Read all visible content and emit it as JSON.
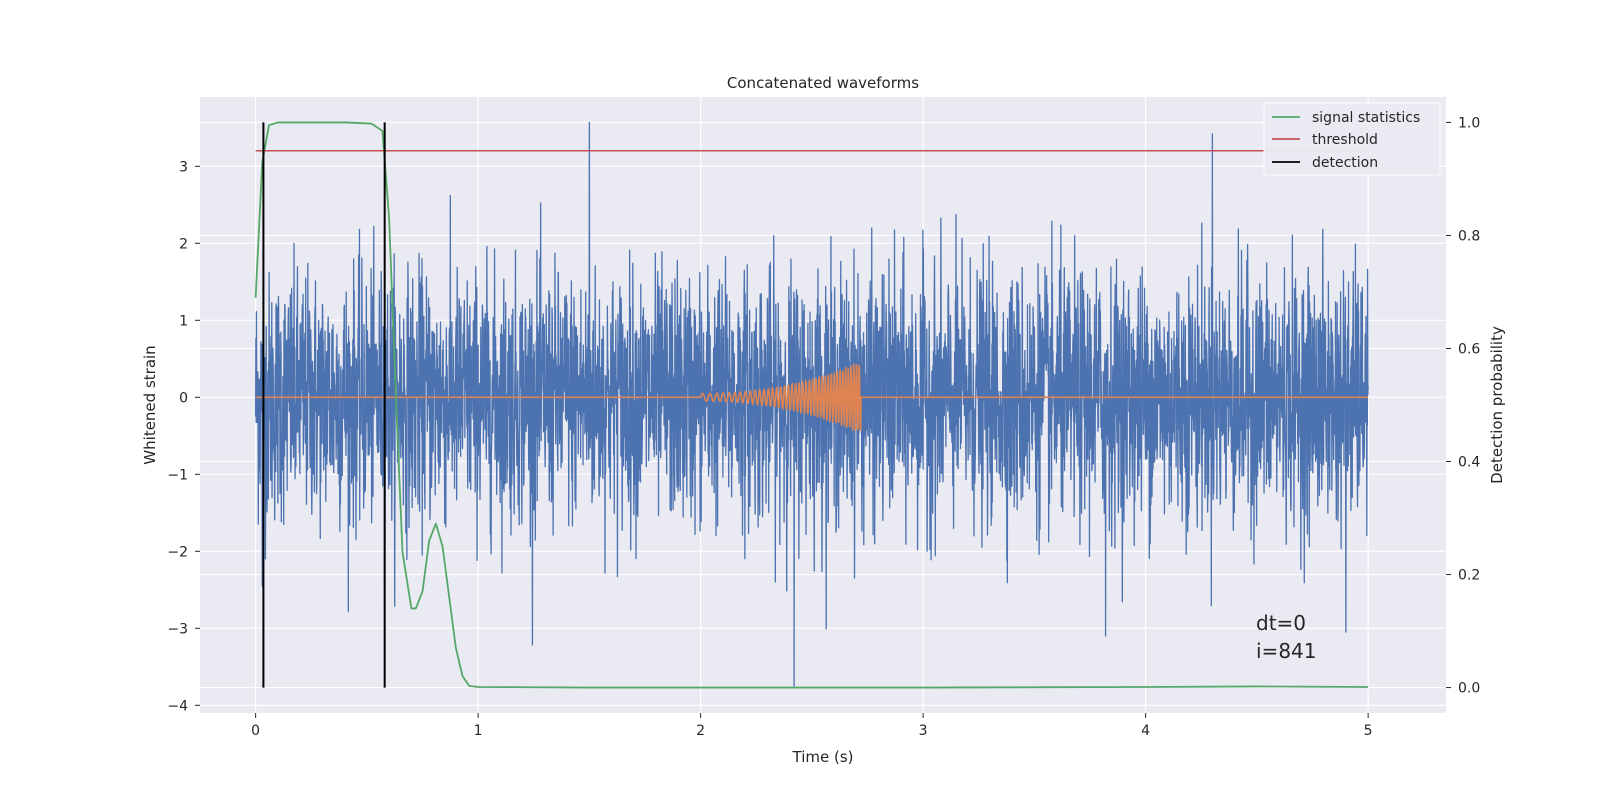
{
  "chart_data": {
    "type": "line",
    "title": "Concatenated waveforms",
    "xlabel": "Time (s)",
    "ylabel": "Whitened strain",
    "y2label": "Detection probability",
    "xlim": [
      -0.25,
      5.35
    ],
    "ylim": [
      -4.1,
      3.9
    ],
    "y2lim": [
      -0.045,
      1.045
    ],
    "x_ticks": [
      0,
      1,
      2,
      3,
      4,
      5
    ],
    "y_ticks": [
      -4,
      -3,
      -2,
      -1,
      0,
      1,
      2,
      3
    ],
    "y2_ticks": [
      0.0,
      0.2,
      0.4,
      0.6,
      0.8,
      1.0
    ],
    "x_tick_labels": [
      "0",
      "1",
      "2",
      "3",
      "4",
      "5"
    ],
    "y_tick_labels": [
      "−4",
      "−3",
      "−2",
      "−1",
      "0",
      "1",
      "2",
      "3"
    ],
    "y2_tick_labels": [
      "0.0",
      "0.2",
      "0.4",
      "0.6",
      "0.8",
      "1.0"
    ],
    "grid": true,
    "legend_position": "top-right",
    "series": [
      {
        "name": "",
        "axis": "left",
        "kind": "noise",
        "color": "#4c72b0",
        "x_range": [
          0,
          5
        ],
        "typical_amplitude": 0.8,
        "peak_max": 3.57,
        "peak_min": -3.75,
        "notable_points": [
          [
            0.03,
            -2.45
          ],
          [
            0.58,
            -3.15
          ],
          [
            1.5,
            3.57
          ],
          [
            2.42,
            -3.75
          ],
          [
            3.82,
            -3.1
          ],
          [
            4.3,
            3.42
          ],
          [
            4.9,
            -3.05
          ]
        ]
      },
      {
        "name": "",
        "axis": "left",
        "kind": "chirp",
        "color": "#dd8452",
        "x_range": [
          0,
          5
        ],
        "chirp_start": 2.0,
        "chirp_end": 2.72,
        "peak_amplitude": 0.48,
        "baseline": 0.0
      },
      {
        "name": "signal statistics",
        "axis": "right",
        "color": "#55a868",
        "x": [
          0,
          0.03,
          0.06,
          0.1,
          0.2,
          0.4,
          0.52,
          0.57,
          0.6,
          0.63,
          0.66,
          0.7,
          0.72,
          0.75,
          0.78,
          0.81,
          0.84,
          0.87,
          0.9,
          0.93,
          0.96,
          1.0,
          1.5,
          2.0,
          3.0,
          4.0,
          4.5,
          5.0
        ],
        "y": [
          0.69,
          0.93,
          0.995,
          1.0,
          1.0,
          1.0,
          0.998,
          0.985,
          0.83,
          0.52,
          0.24,
          0.14,
          0.14,
          0.17,
          0.26,
          0.29,
          0.25,
          0.16,
          0.07,
          0.02,
          0.003,
          0.001,
          0.0,
          0.0,
          0.0,
          0.001,
          0.002,
          0.001
        ]
      },
      {
        "name": "threshold",
        "axis": "right",
        "color": "#c44e52",
        "x": [
          0,
          5
        ],
        "y": [
          0.95,
          0.95
        ]
      },
      {
        "name": "detection",
        "axis": "right",
        "kind": "vlines",
        "color": "#000000",
        "x": [
          0.035,
          0.58
        ],
        "ymin": 0.0,
        "ymax": 1.0
      }
    ],
    "annotations": [
      "dt=0",
      "i=841"
    ]
  }
}
